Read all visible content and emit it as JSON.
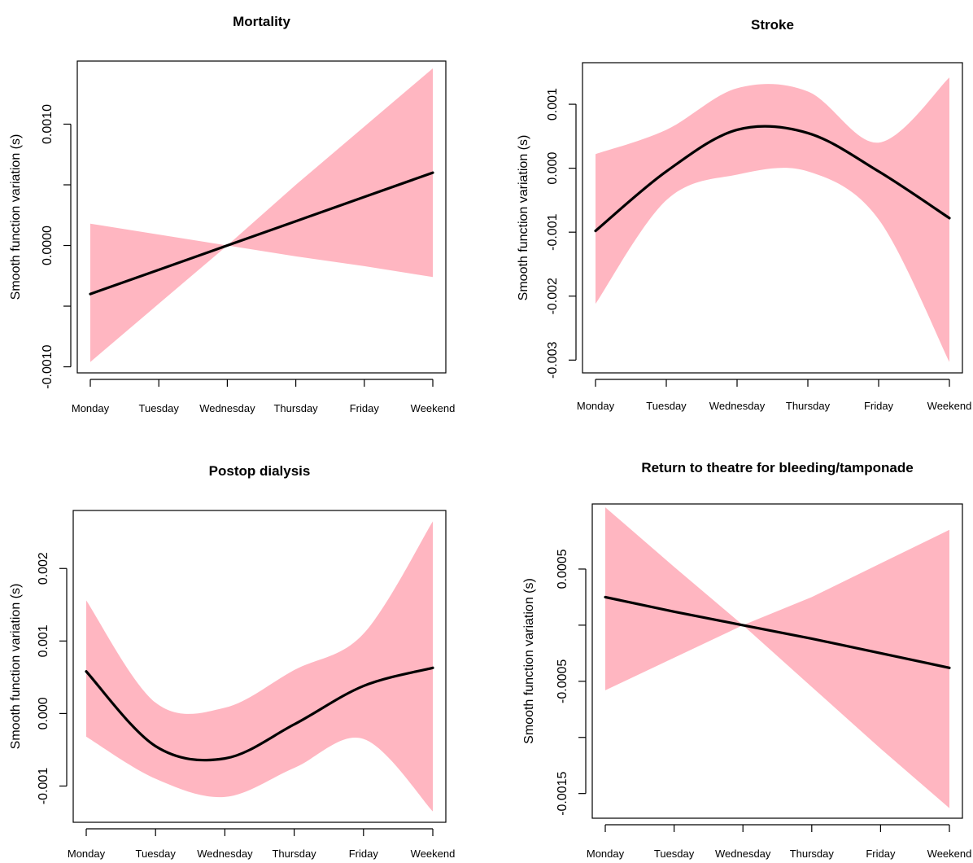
{
  "chart_data": [
    {
      "type": "line",
      "title": "Mortality",
      "ylabel": "Smooth function variation (s)",
      "categories": [
        "Monday",
        "Tuesday",
        "Wednesday",
        "Thursday",
        "Friday",
        "Weekend"
      ],
      "ylim": [
        -0.00105,
        0.00152
      ],
      "yticks": [
        -0.001,
        -0.0005,
        0.0,
        0.0005,
        0.001
      ],
      "yticklabels": [
        "-0.0010",
        "",
        "0.0000",
        "",
        "0.0010"
      ],
      "series": [
        {
          "role": "estimate",
          "color": "#000000",
          "values": [
            -0.0004,
            -0.0002,
            0.0,
            0.0002,
            0.0004,
            0.0006
          ]
        },
        {
          "role": "ci_upper",
          "color": "#ffb6c1",
          "values": [
            0.00018,
            9e-05,
            0.0,
            0.0005,
            0.00098,
            0.00146
          ]
        },
        {
          "role": "ci_lower",
          "color": "#ffb6c1",
          "values": [
            -0.00096,
            -0.00048,
            0.0,
            -9e-05,
            -0.00017,
            -0.00026
          ]
        }
      ]
    },
    {
      "type": "line",
      "title": "Stroke",
      "ylabel": "Smooth function variation (s)",
      "categories": [
        "Monday",
        "Tuesday",
        "Wednesday",
        "Thursday",
        "Friday",
        "Weekend"
      ],
      "ylim": [
        -0.0032,
        0.00165
      ],
      "yticks": [
        -0.003,
        -0.002,
        -0.001,
        0.0,
        0.001
      ],
      "yticklabels": [
        "-0.003",
        "-0.002",
        "-0.001",
        "0.000",
        "0.001"
      ],
      "series": [
        {
          "role": "estimate",
          "color": "#000000",
          "values": [
            -0.00098,
            -5e-05,
            0.0006,
            0.00055,
            -5e-05,
            -0.00078
          ]
        },
        {
          "role": "ci_upper",
          "color": "#ffb6c1",
          "values": [
            0.00022,
            0.0006,
            0.00125,
            0.0012,
            0.0004,
            0.00142
          ]
        },
        {
          "role": "ci_lower",
          "color": "#ffb6c1",
          "values": [
            -0.00212,
            -0.0005,
            -0.0001,
            -5e-05,
            -0.0008,
            -0.00303
          ]
        }
      ]
    },
    {
      "type": "line",
      "title": "Postop dialysis",
      "ylabel": "Smooth function variation (s)",
      "categories": [
        "Monday",
        "Tuesday",
        "Wednesday",
        "Thursday",
        "Friday",
        "Weekend"
      ],
      "ylim": [
        -0.0015,
        0.0028
      ],
      "yticks": [
        -0.001,
        0.0,
        0.001,
        0.002
      ],
      "yticklabels": [
        "-0.001",
        "0.000",
        "0.001",
        "0.002"
      ],
      "series": [
        {
          "role": "estimate",
          "color": "#000000",
          "values": [
            0.00058,
            -0.00045,
            -0.00062,
            -0.00015,
            0.00038,
            0.00063
          ]
        },
        {
          "role": "ci_upper",
          "color": "#ffb6c1",
          "values": [
            0.00156,
            0.00015,
            8e-05,
            0.0006,
            0.0011,
            0.00265
          ]
        },
        {
          "role": "ci_lower",
          "color": "#ffb6c1",
          "values": [
            -0.00032,
            -0.0009,
            -0.00115,
            -0.00075,
            -0.00035,
            -0.00135
          ]
        }
      ]
    },
    {
      "type": "line",
      "title": "Return to theatre for bleeding/tamponade",
      "ylabel": "Smooth function variation (s)",
      "categories": [
        "Monday",
        "Tuesday",
        "Wednesday",
        "Thursday",
        "Friday",
        "Weekend"
      ],
      "ylim": [
        -0.00172,
        0.00108
      ],
      "yticks": [
        -0.0015,
        -0.001,
        -0.0005,
        0.0,
        0.0005
      ],
      "yticklabels": [
        "-0.0015",
        "",
        "-0.0005",
        "",
        "0.0005"
      ],
      "series": [
        {
          "role": "estimate",
          "color": "#000000",
          "values": [
            0.00025,
            0.00012,
            0.0,
            -0.00012,
            -0.00025,
            -0.00038
          ]
        },
        {
          "role": "ci_upper",
          "color": "#ffb6c1",
          "values": [
            0.00105,
            0.00052,
            0.0,
            0.00025,
            0.00055,
            0.00085
          ]
        },
        {
          "role": "ci_lower",
          "color": "#ffb6c1",
          "values": [
            -0.00058,
            -0.00029,
            0.0,
            -0.00055,
            -0.0011,
            -0.00163
          ]
        }
      ]
    }
  ]
}
